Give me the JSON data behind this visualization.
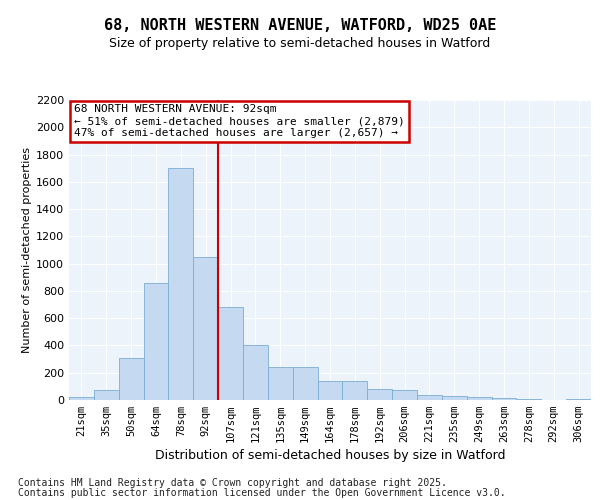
{
  "title": "68, NORTH WESTERN AVENUE, WATFORD, WD25 0AE",
  "subtitle": "Size of property relative to semi-detached houses in Watford",
  "xlabel": "Distribution of semi-detached houses by size in Watford",
  "ylabel": "Number of semi-detached properties",
  "bin_labels": [
    "21sqm",
    "35sqm",
    "50sqm",
    "64sqm",
    "78sqm",
    "92sqm",
    "107sqm",
    "121sqm",
    "135sqm",
    "149sqm",
    "164sqm",
    "178sqm",
    "192sqm",
    "206sqm",
    "221sqm",
    "235sqm",
    "249sqm",
    "263sqm",
    "278sqm",
    "292sqm",
    "306sqm"
  ],
  "bar_values": [
    20,
    75,
    305,
    860,
    1700,
    1050,
    680,
    400,
    245,
    245,
    140,
    140,
    80,
    75,
    40,
    30,
    20,
    15,
    8,
    3,
    10
  ],
  "bar_color": "#c5d9f0",
  "bar_edge_color": "#7aadd4",
  "vline_color": "#cc0000",
  "vline_x": 5.5,
  "annotation_text_line1": "68 NORTH WESTERN AVENUE: 92sqm",
  "annotation_text_line2": "← 51% of semi-detached houses are smaller (2,879)",
  "annotation_text_line3": "47% of semi-detached houses are larger (2,657) →",
  "annotation_box_color": "#cc0000",
  "ylim": [
    0,
    2200
  ],
  "yticks": [
    0,
    200,
    400,
    600,
    800,
    1000,
    1200,
    1400,
    1600,
    1800,
    2000,
    2200
  ],
  "bg_color": "#ffffff",
  "plot_bg_color": "#edf3fb",
  "grid_color": "#ffffff",
  "footer_line1": "Contains HM Land Registry data © Crown copyright and database right 2025.",
  "footer_line2": "Contains public sector information licensed under the Open Government Licence v3.0.",
  "title_fontsize": 11,
  "subtitle_fontsize": 9,
  "xlabel_fontsize": 9,
  "ylabel_fontsize": 8,
  "tick_fontsize": 8,
  "xtick_fontsize": 7.5,
  "footer_fontsize": 7,
  "annot_fontsize": 8
}
